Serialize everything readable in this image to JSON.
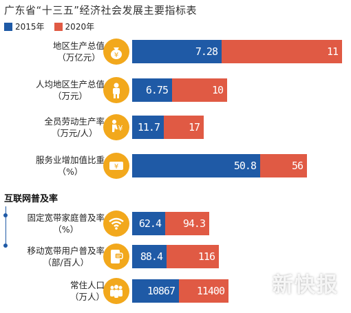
{
  "title": "广东省“十三五”经济社会发展主要指标表",
  "legend": [
    {
      "label": "2015年",
      "color": "#1f5aa6"
    },
    {
      "label": "2020年",
      "color": "#e05a44"
    }
  ],
  "section_title": "互联网普及率",
  "watermark": "新快报",
  "colors": {
    "series_2015": "#1f5aa6",
    "series_2020": "#e05a44",
    "icon_bg": "#f2a81c"
  },
  "chart_data": {
    "type": "bar",
    "title": "广东省“十三五”经济社会发展主要指标表",
    "series": [
      {
        "name": "2015年",
        "values": [
          7.28,
          6.75,
          11.7,
          50.8,
          62.4,
          88.4,
          10867
        ]
      },
      {
        "name": "2020年",
        "values": [
          11,
          10,
          17,
          56,
          94.3,
          116,
          11400
        ]
      }
    ],
    "value_labels_2015": [
      "7.28",
      "6.75",
      "11.7",
      "50.8",
      "62.4",
      "88.4",
      "10867"
    ],
    "value_labels_2020": [
      "11",
      "10",
      "17",
      "56",
      "94.3",
      "116",
      "11400"
    ],
    "categories": [
      {
        "name": "地区生产总值",
        "unit": "（万亿元）",
        "icon": "money-bag-icon"
      },
      {
        "name": "人均地区生产总值",
        "unit": "（万元）",
        "icon": "person-icon"
      },
      {
        "name": "全员劳动生产率",
        "unit": "（万元/人）",
        "icon": "worker-icon"
      },
      {
        "name": "服务业增加值比重",
        "unit": "（%）",
        "icon": "cash-card-icon"
      },
      {
        "name": "固定宽带家庭普及率",
        "unit": "（%）",
        "icon": "wifi-icon"
      },
      {
        "name": "移动宽带用户普及率",
        "unit": "（部/百人）",
        "icon": "phone-chat-icon"
      },
      {
        "name": "常住人口",
        "unit": "（万人）",
        "icon": "people-icon"
      }
    ],
    "legend_position": "top-left",
    "grid": false,
    "stacked": true
  }
}
